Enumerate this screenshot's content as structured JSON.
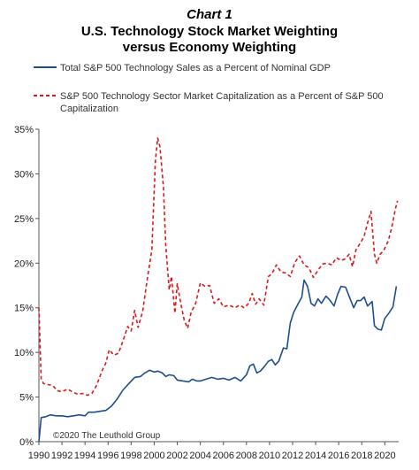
{
  "chart_data": {
    "type": "line",
    "chart_number": "Chart 1",
    "title_lines": [
      "U.S. Technology Stock Market Weighting",
      "versus Economy Weighting"
    ],
    "credit": "©2020 The Leuthold Group",
    "xlim": [
      1990,
      2021.2
    ],
    "ylim": [
      0,
      35
    ],
    "x_ticks": [
      1990,
      1992,
      1994,
      1996,
      1998,
      2000,
      2002,
      2004,
      2006,
      2008,
      2010,
      2012,
      2014,
      2016,
      2018,
      2020
    ],
    "y_ticks": [
      {
        "value": 0,
        "label": "0%"
      },
      {
        "value": 5,
        "label": "5%"
      },
      {
        "value": 10,
        "label": "10%"
      },
      {
        "value": 15,
        "label": "15%"
      },
      {
        "value": 20,
        "label": "20%"
      },
      {
        "value": 25,
        "label": "25%"
      },
      {
        "value": 30,
        "label": "30%"
      },
      {
        "value": 35,
        "label": "35%"
      }
    ],
    "legend_placement": "top",
    "series": [
      {
        "name": "Total S&P 500 Technology Sales as a Percent of Nominal GDP",
        "color": "#1f4e8c",
        "style": "solid",
        "points": [
          [
            1990.0,
            0.0
          ],
          [
            1990.2,
            2.7
          ],
          [
            1990.6,
            2.8
          ],
          [
            1991.0,
            3.0
          ],
          [
            1991.5,
            2.9
          ],
          [
            1992.0,
            2.9
          ],
          [
            1992.5,
            2.8
          ],
          [
            1993.0,
            2.9
          ],
          [
            1993.5,
            3.0
          ],
          [
            1994.0,
            2.9
          ],
          [
            1994.3,
            3.3
          ],
          [
            1994.8,
            3.3
          ],
          [
            1995.3,
            3.4
          ],
          [
            1995.8,
            3.5
          ],
          [
            1996.3,
            4.0
          ],
          [
            1996.8,
            4.8
          ],
          [
            1997.3,
            5.8
          ],
          [
            1997.8,
            6.5
          ],
          [
            1998.3,
            7.2
          ],
          [
            1998.8,
            7.3
          ],
          [
            1999.2,
            7.7
          ],
          [
            1999.6,
            8.0
          ],
          [
            2000.0,
            7.8
          ],
          [
            2000.3,
            7.9
          ],
          [
            2000.7,
            7.7
          ],
          [
            2001.0,
            7.3
          ],
          [
            2001.3,
            7.5
          ],
          [
            2001.7,
            7.4
          ],
          [
            2002.0,
            6.9
          ],
          [
            2002.5,
            6.8
          ],
          [
            2003.0,
            6.7
          ],
          [
            2003.3,
            7.0
          ],
          [
            2003.7,
            6.8
          ],
          [
            2004.0,
            6.8
          ],
          [
            2004.5,
            7.0
          ],
          [
            2005.0,
            7.2
          ],
          [
            2005.5,
            7.0
          ],
          [
            2006.0,
            7.1
          ],
          [
            2006.5,
            6.9
          ],
          [
            2007.0,
            7.2
          ],
          [
            2007.5,
            6.8
          ],
          [
            2008.0,
            7.5
          ],
          [
            2008.3,
            8.5
          ],
          [
            2008.6,
            8.7
          ],
          [
            2008.9,
            7.7
          ],
          [
            2009.2,
            7.9
          ],
          [
            2009.6,
            8.5
          ],
          [
            2009.9,
            9.0
          ],
          [
            2010.2,
            9.2
          ],
          [
            2010.5,
            8.6
          ],
          [
            2010.8,
            9.0
          ],
          [
            2011.2,
            10.5
          ],
          [
            2011.5,
            10.4
          ],
          [
            2011.8,
            13.3
          ],
          [
            2012.1,
            14.5
          ],
          [
            2012.5,
            15.5
          ],
          [
            2012.8,
            16.2
          ],
          [
            2013.0,
            18.1
          ],
          [
            2013.3,
            17.4
          ],
          [
            2013.6,
            15.5
          ],
          [
            2013.9,
            15.2
          ],
          [
            2014.2,
            16.0
          ],
          [
            2014.5,
            15.5
          ],
          [
            2014.9,
            16.3
          ],
          [
            2015.2,
            15.9
          ],
          [
            2015.6,
            15.2
          ],
          [
            2015.9,
            16.5
          ],
          [
            2016.2,
            17.4
          ],
          [
            2016.6,
            17.3
          ],
          [
            2016.9,
            16.3
          ],
          [
            2017.3,
            15.0
          ],
          [
            2017.6,
            15.8
          ],
          [
            2017.9,
            15.8
          ],
          [
            2018.2,
            16.2
          ],
          [
            2018.5,
            15.2
          ],
          [
            2018.9,
            15.7
          ],
          [
            2019.1,
            13.0
          ],
          [
            2019.4,
            12.6
          ],
          [
            2019.7,
            12.5
          ],
          [
            2020.0,
            13.8
          ],
          [
            2020.4,
            14.5
          ],
          [
            2020.7,
            15.1
          ],
          [
            2021.0,
            17.4
          ]
        ]
      },
      {
        "name": "S&P 500 Technology Sector Market Capitalization as a Percent of S&P 500 Capitalization",
        "color": "#d7191c",
        "style": "dashed",
        "points": [
          [
            1990.0,
            15.0
          ],
          [
            1990.2,
            7.0
          ],
          [
            1990.4,
            6.5
          ],
          [
            1990.8,
            6.4
          ],
          [
            1991.2,
            6.3
          ],
          [
            1991.6,
            5.7
          ],
          [
            1992.0,
            5.6
          ],
          [
            1992.5,
            5.9
          ],
          [
            1993.0,
            5.5
          ],
          [
            1993.4,
            5.3
          ],
          [
            1993.8,
            5.4
          ],
          [
            1994.2,
            5.2
          ],
          [
            1994.6,
            5.4
          ],
          [
            1995.0,
            6.3
          ],
          [
            1995.5,
            8.0
          ],
          [
            1995.8,
            8.8
          ],
          [
            1996.1,
            10.3
          ],
          [
            1996.5,
            9.7
          ],
          [
            1996.9,
            9.9
          ],
          [
            1997.3,
            11.3
          ],
          [
            1997.7,
            12.9
          ],
          [
            1998.0,
            12.4
          ],
          [
            1998.3,
            14.7
          ],
          [
            1998.6,
            12.8
          ],
          [
            1999.0,
            14.6
          ],
          [
            1999.4,
            18.2
          ],
          [
            1999.8,
            21.5
          ],
          [
            2000.1,
            31.5
          ],
          [
            2000.3,
            34.0
          ],
          [
            2000.5,
            33.0
          ],
          [
            2000.8,
            28.5
          ],
          [
            2001.0,
            22.0
          ],
          [
            2001.3,
            17.0
          ],
          [
            2001.5,
            18.5
          ],
          [
            2001.8,
            14.4
          ],
          [
            2002.0,
            17.7
          ],
          [
            2002.3,
            15.5
          ],
          [
            2002.6,
            13.6
          ],
          [
            2002.9,
            12.7
          ],
          [
            2003.2,
            14.5
          ],
          [
            2003.6,
            15.5
          ],
          [
            2004.0,
            17.8
          ],
          [
            2004.4,
            17.4
          ],
          [
            2004.8,
            17.5
          ],
          [
            2005.2,
            15.5
          ],
          [
            2005.6,
            16.0
          ],
          [
            2006.0,
            15.1
          ],
          [
            2006.5,
            15.3
          ],
          [
            2007.0,
            15.0
          ],
          [
            2007.4,
            15.3
          ],
          [
            2007.8,
            15.0
          ],
          [
            2008.2,
            15.5
          ],
          [
            2008.5,
            16.6
          ],
          [
            2008.8,
            15.4
          ],
          [
            2009.1,
            16.0
          ],
          [
            2009.5,
            15.3
          ],
          [
            2009.9,
            18.5
          ],
          [
            2010.2,
            18.8
          ],
          [
            2010.6,
            19.8
          ],
          [
            2011.0,
            19.0
          ],
          [
            2011.4,
            18.9
          ],
          [
            2011.8,
            18.5
          ],
          [
            2012.2,
            20.1
          ],
          [
            2012.6,
            20.8
          ],
          [
            2013.0,
            19.8
          ],
          [
            2013.4,
            19.5
          ],
          [
            2013.8,
            18.4
          ],
          [
            2014.2,
            19.2
          ],
          [
            2014.6,
            19.9
          ],
          [
            2015.0,
            20.0
          ],
          [
            2015.4,
            19.8
          ],
          [
            2015.8,
            20.6
          ],
          [
            2016.2,
            20.3
          ],
          [
            2016.6,
            20.5
          ],
          [
            2016.9,
            21.0
          ],
          [
            2017.2,
            19.6
          ],
          [
            2017.5,
            21.5
          ],
          [
            2017.9,
            22.3
          ],
          [
            2018.2,
            23.0
          ],
          [
            2018.5,
            24.5
          ],
          [
            2018.8,
            25.8
          ],
          [
            2019.1,
            21.0
          ],
          [
            2019.3,
            20.0
          ],
          [
            2019.6,
            21.0
          ],
          [
            2019.9,
            21.4
          ],
          [
            2020.3,
            22.5
          ],
          [
            2020.6,
            24.0
          ],
          [
            2020.9,
            26.0
          ],
          [
            2021.1,
            27.0
          ]
        ]
      }
    ]
  }
}
